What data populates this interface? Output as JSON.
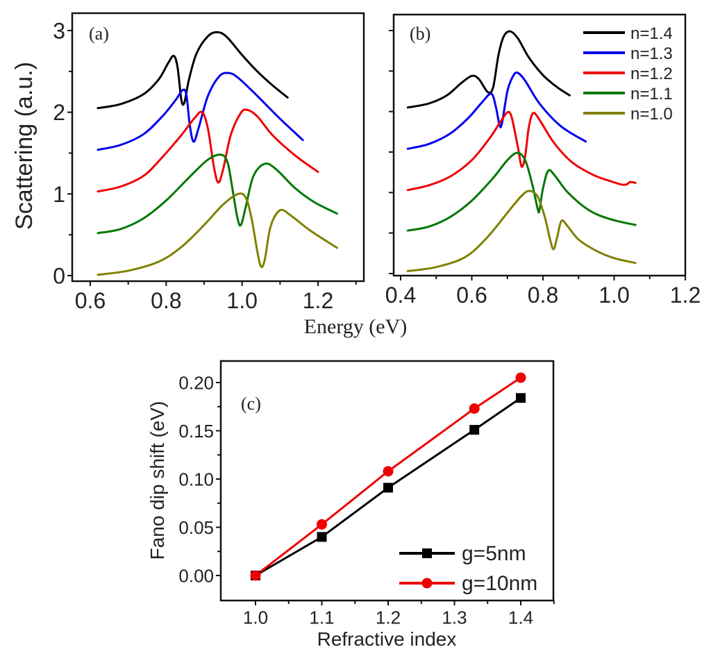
{
  "chart_data": [
    {
      "id": "a",
      "type": "line",
      "panel_label": "(a)",
      "xlabel": "Energy (eV)",
      "ylabel": "Scattering (a.u.)",
      "xlim": [
        0.55,
        1.32
      ],
      "ylim": [
        -0.02,
        3.18
      ],
      "xticks": [
        0.6,
        0.8,
        1.0,
        1.2
      ],
      "xtick_labels": [
        "0.6",
        "0.8",
        "1.0",
        "1.2"
      ],
      "xminor": [
        0.7,
        0.9,
        1.1,
        1.3
      ],
      "yticks": [
        0,
        1,
        2,
        3
      ],
      "ytick_labels": [
        "0",
        "1",
        "2",
        "3"
      ],
      "yminor": [
        0.5,
        1.5,
        2.5
      ],
      "grid": false,
      "series": [
        {
          "name": "n=1.4",
          "color": "#000000",
          "points": [
            [
              0.62,
              2.05
            ],
            [
              0.68,
              2.1
            ],
            [
              0.74,
              2.22
            ],
            [
              0.78,
              2.4
            ],
            [
              0.805,
              2.6
            ],
            [
              0.82,
              2.69
            ],
            [
              0.83,
              2.55
            ],
            [
              0.84,
              2.15
            ],
            [
              0.848,
              2.12
            ],
            [
              0.86,
              2.4
            ],
            [
              0.88,
              2.72
            ],
            [
              0.91,
              2.93
            ],
            [
              0.935,
              2.98
            ],
            [
              0.96,
              2.92
            ],
            [
              1.0,
              2.7
            ],
            [
              1.04,
              2.5
            ],
            [
              1.08,
              2.33
            ],
            [
              1.12,
              2.18
            ]
          ]
        },
        {
          "name": "n=1.3",
          "color": "#0000ee",
          "points": [
            [
              0.62,
              1.54
            ],
            [
              0.68,
              1.6
            ],
            [
              0.74,
              1.73
            ],
            [
              0.79,
              1.95
            ],
            [
              0.825,
              2.15
            ],
            [
              0.843,
              2.27
            ],
            [
              0.853,
              2.22
            ],
            [
              0.862,
              1.85
            ],
            [
              0.872,
              1.64
            ],
            [
              0.885,
              1.8
            ],
            [
              0.91,
              2.2
            ],
            [
              0.94,
              2.44
            ],
            [
              0.965,
              2.48
            ],
            [
              0.99,
              2.42
            ],
            [
              1.04,
              2.2
            ],
            [
              1.1,
              1.92
            ],
            [
              1.16,
              1.66
            ]
          ]
        },
        {
          "name": "n=1.2",
          "color": "#ee0000",
          "points": [
            [
              0.62,
              1.03
            ],
            [
              0.68,
              1.09
            ],
            [
              0.74,
              1.22
            ],
            [
              0.79,
              1.45
            ],
            [
              0.84,
              1.72
            ],
            [
              0.875,
              1.93
            ],
            [
              0.895,
              2.0
            ],
            [
              0.91,
              1.8
            ],
            [
              0.925,
              1.35
            ],
            [
              0.937,
              1.14
            ],
            [
              0.95,
              1.3
            ],
            [
              0.97,
              1.72
            ],
            [
              0.995,
              1.98
            ],
            [
              1.012,
              2.03
            ],
            [
              1.04,
              1.95
            ],
            [
              1.08,
              1.72
            ],
            [
              1.14,
              1.47
            ],
            [
              1.2,
              1.27
            ]
          ]
        },
        {
          "name": "n=1.1",
          "color": "#007700",
          "points": [
            [
              0.62,
              0.52
            ],
            [
              0.68,
              0.57
            ],
            [
              0.74,
              0.7
            ],
            [
              0.8,
              0.92
            ],
            [
              0.86,
              1.2
            ],
            [
              0.91,
              1.42
            ],
            [
              0.945,
              1.48
            ],
            [
              0.962,
              1.38
            ],
            [
              0.975,
              1.05
            ],
            [
              0.988,
              0.7
            ],
            [
              0.997,
              0.62
            ],
            [
              1.01,
              0.85
            ],
            [
              1.03,
              1.22
            ],
            [
              1.06,
              1.37
            ],
            [
              1.09,
              1.3
            ],
            [
              1.14,
              1.07
            ],
            [
              1.19,
              0.9
            ],
            [
              1.25,
              0.76
            ]
          ]
        },
        {
          "name": "n=1.0",
          "color": "#808000",
          "points": [
            [
              0.62,
              0.01
            ],
            [
              0.7,
              0.06
            ],
            [
              0.78,
              0.17
            ],
            [
              0.84,
              0.35
            ],
            [
              0.9,
              0.62
            ],
            [
              0.95,
              0.87
            ],
            [
              0.99,
              1.0
            ],
            [
              1.01,
              0.95
            ],
            [
              1.025,
              0.7
            ],
            [
              1.04,
              0.3
            ],
            [
              1.05,
              0.11
            ],
            [
              1.06,
              0.2
            ],
            [
              1.075,
              0.6
            ],
            [
              1.1,
              0.8
            ],
            [
              1.13,
              0.73
            ],
            [
              1.18,
              0.55
            ],
            [
              1.25,
              0.34
            ]
          ]
        }
      ]
    },
    {
      "id": "b",
      "type": "line",
      "panel_label": "(b)",
      "xlim": [
        0.38,
        1.2
      ],
      "ylim": [
        -0.02,
        3.18
      ],
      "xticks": [
        0.4,
        0.6,
        0.8,
        1.0,
        1.2
      ],
      "xtick_labels": [
        "0.4",
        "0.6",
        "0.8",
        "1.0",
        "1.2"
      ],
      "xminor": [
        0.5,
        0.7,
        0.9,
        1.1
      ],
      "yticks": [
        0,
        0.5,
        1,
        1.5,
        2,
        2.5,
        3
      ],
      "grid": false,
      "legend": {
        "position": "top-right",
        "entries": [
          "n=1.4",
          "n=1.3",
          "n=1.2",
          "n=1.1",
          "n=1.0"
        ]
      },
      "series": [
        {
          "name": "n=1.4",
          "color": "#000000",
          "points": [
            [
              0.42,
              2.05
            ],
            [
              0.48,
              2.1
            ],
            [
              0.53,
              2.2
            ],
            [
              0.57,
              2.35
            ],
            [
              0.6,
              2.44
            ],
            [
              0.62,
              2.4
            ],
            [
              0.645,
              2.24
            ],
            [
              0.66,
              2.3
            ],
            [
              0.675,
              2.7
            ],
            [
              0.69,
              2.93
            ],
            [
              0.708,
              2.99
            ],
            [
              0.73,
              2.9
            ],
            [
              0.76,
              2.67
            ],
            [
              0.8,
              2.45
            ],
            [
              0.84,
              2.3
            ],
            [
              0.875,
              2.2
            ]
          ]
        },
        {
          "name": "n=1.3",
          "color": "#0000ee",
          "points": [
            [
              0.42,
              1.54
            ],
            [
              0.48,
              1.6
            ],
            [
              0.54,
              1.73
            ],
            [
              0.59,
              1.92
            ],
            [
              0.63,
              2.12
            ],
            [
              0.655,
              2.22
            ],
            [
              0.668,
              2.05
            ],
            [
              0.678,
              1.83
            ],
            [
              0.685,
              1.86
            ],
            [
              0.7,
              2.25
            ],
            [
              0.715,
              2.43
            ],
            [
              0.728,
              2.48
            ],
            [
              0.75,
              2.38
            ],
            [
              0.79,
              2.1
            ],
            [
              0.85,
              1.82
            ],
            [
              0.92,
              1.63
            ]
          ]
        },
        {
          "name": "n=1.2",
          "color": "#ee0000",
          "points": [
            [
              0.42,
              1.03
            ],
            [
              0.48,
              1.09
            ],
            [
              0.54,
              1.2
            ],
            [
              0.6,
              1.4
            ],
            [
              0.65,
              1.67
            ],
            [
              0.68,
              1.87
            ],
            [
              0.7,
              1.99
            ],
            [
              0.712,
              1.93
            ],
            [
              0.73,
              1.55
            ],
            [
              0.74,
              1.32
            ],
            [
              0.75,
              1.45
            ],
            [
              0.76,
              1.8
            ],
            [
              0.772,
              1.98
            ],
            [
              0.79,
              1.9
            ],
            [
              0.83,
              1.62
            ],
            [
              0.88,
              1.38
            ],
            [
              0.94,
              1.22
            ],
            [
              0.99,
              1.14
            ],
            [
              1.02,
              1.1
            ],
            [
              1.035,
              1.1
            ],
            [
              1.045,
              1.13
            ],
            [
              1.06,
              1.12
            ]
          ]
        },
        {
          "name": "n=1.1",
          "color": "#007700",
          "points": [
            [
              0.42,
              0.53
            ],
            [
              0.48,
              0.58
            ],
            [
              0.54,
              0.7
            ],
            [
              0.6,
              0.9
            ],
            [
              0.66,
              1.18
            ],
            [
              0.7,
              1.4
            ],
            [
              0.728,
              1.49
            ],
            [
              0.75,
              1.4
            ],
            [
              0.77,
              1.1
            ],
            [
              0.785,
              0.8
            ],
            [
              0.79,
              0.78
            ],
            [
              0.8,
              1.05
            ],
            [
              0.815,
              1.27
            ],
            [
              0.835,
              1.2
            ],
            [
              0.87,
              1.0
            ],
            [
              0.93,
              0.78
            ],
            [
              0.99,
              0.67
            ],
            [
              1.06,
              0.6
            ]
          ]
        },
        {
          "name": "n=1.0",
          "color": "#808000",
          "points": [
            [
              0.42,
              0.03
            ],
            [
              0.5,
              0.08
            ],
            [
              0.58,
              0.2
            ],
            [
              0.64,
              0.43
            ],
            [
              0.7,
              0.75
            ],
            [
              0.74,
              0.96
            ],
            [
              0.762,
              1.02
            ],
            [
              0.785,
              0.95
            ],
            [
              0.805,
              0.7
            ],
            [
              0.82,
              0.42
            ],
            [
              0.83,
              0.3
            ],
            [
              0.84,
              0.45
            ],
            [
              0.852,
              0.65
            ],
            [
              0.87,
              0.58
            ],
            [
              0.9,
              0.42
            ],
            [
              0.95,
              0.28
            ],
            [
              1.0,
              0.19
            ],
            [
              1.06,
              0.13
            ]
          ]
        }
      ]
    },
    {
      "id": "c",
      "type": "line",
      "panel_label": "(c)",
      "xlabel": "Refractive index",
      "ylabel": "Fano dip shift (eV)",
      "xlim": [
        0.95,
        1.45
      ],
      "ylim": [
        -0.025,
        0.225
      ],
      "xticks": [
        1.0,
        1.1,
        1.2,
        1.3,
        1.4
      ],
      "xtick_labels": [
        "1.0",
        "1.1",
        "1.2",
        "1.3",
        "1.4"
      ],
      "xminor": [
        1.05,
        1.15,
        1.25,
        1.35,
        1.45
      ],
      "yticks": [
        0.0,
        0.05,
        0.1,
        0.15,
        0.2
      ],
      "ytick_labels": [
        "0.00",
        "0.05",
        "0.10",
        "0.15",
        "0.20"
      ],
      "yminor": [
        0.025,
        0.075,
        0.125,
        0.175
      ],
      "grid": false,
      "legend": {
        "position": "bottom-right",
        "entries": [
          "g=5nm",
          "g=10nm"
        ]
      },
      "x": [
        1.0,
        1.1,
        1.2,
        1.33,
        1.4
      ],
      "series": [
        {
          "name": "g=5nm",
          "color": "#000000",
          "marker": "square",
          "values": [
            0.0,
            0.04,
            0.091,
            0.151,
            0.184
          ]
        },
        {
          "name": "g=10nm",
          "color": "#ee0000",
          "marker": "circle",
          "values": [
            0.0,
            0.053,
            0.108,
            0.173,
            0.205
          ]
        }
      ]
    }
  ]
}
